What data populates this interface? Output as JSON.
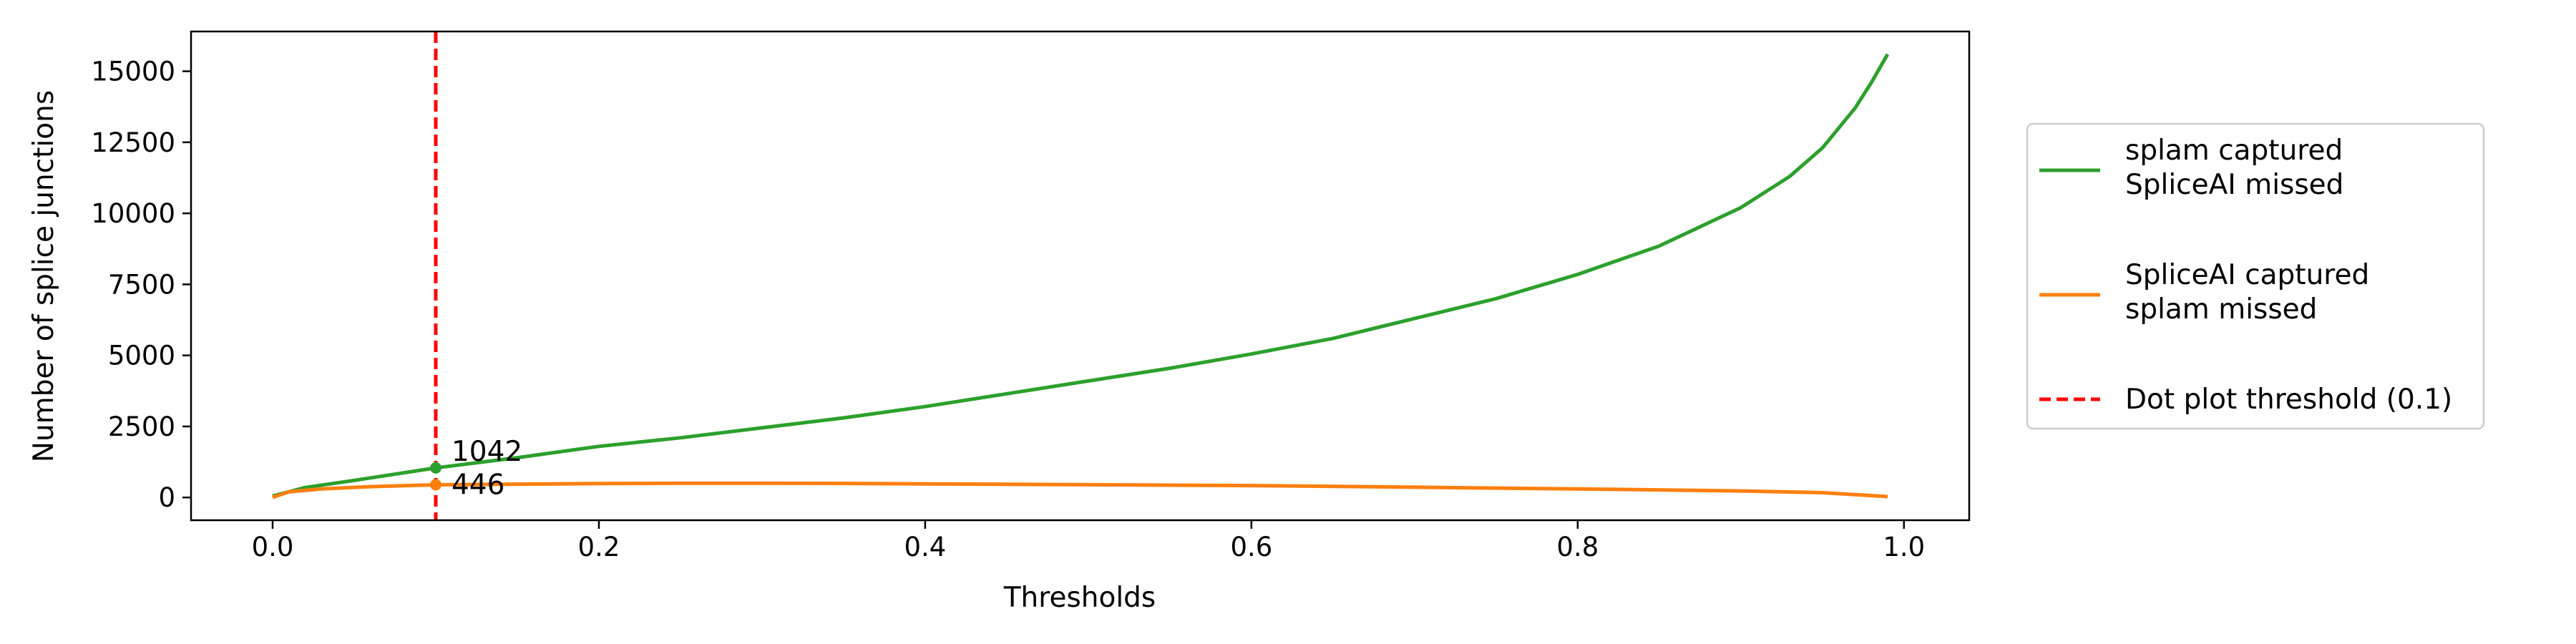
{
  "chart_data": {
    "type": "line",
    "xlabel": "Thresholds",
    "ylabel": "Number of splice junctions",
    "xlim": [
      -0.05,
      1.04
    ],
    "ylim": [
      -800,
      16400
    ],
    "xticks": [
      0.0,
      0.2,
      0.4,
      0.6,
      0.8,
      1.0
    ],
    "xtick_labels": [
      "0.0",
      "0.2",
      "0.4",
      "0.6",
      "0.8",
      "1.0"
    ],
    "yticks": [
      0,
      2500,
      5000,
      7500,
      10000,
      12500,
      15000
    ],
    "ytick_labels": [
      "0",
      "2500",
      "5000",
      "7500",
      "10000",
      "12500",
      "15000"
    ],
    "grid": false,
    "legend_position": "right-outside",
    "series": [
      {
        "name": "splam captured\nSpliceAI missed",
        "color": "#2ca02c",
        "x": [
          0.0,
          0.02,
          0.05,
          0.1,
          0.15,
          0.2,
          0.25,
          0.3,
          0.35,
          0.4,
          0.45,
          0.5,
          0.55,
          0.6,
          0.65,
          0.7,
          0.75,
          0.8,
          0.85,
          0.9,
          0.93,
          0.95,
          0.97,
          0.98,
          0.99
        ],
        "y": [
          50,
          350,
          600,
          1042,
          1400,
          1800,
          2100,
          2450,
          2800,
          3200,
          3650,
          4100,
          4550,
          5050,
          5600,
          6300,
          7000,
          7850,
          8850,
          10200,
          11300,
          12300,
          13700,
          14600,
          15600
        ]
      },
      {
        "name": "SpliceAI captured\nsplam missed",
        "color": "#ff7f0e",
        "x": [
          0.0,
          0.01,
          0.03,
          0.06,
          0.1,
          0.15,
          0.2,
          0.25,
          0.3,
          0.35,
          0.4,
          0.5,
          0.6,
          0.7,
          0.8,
          0.9,
          0.95,
          0.99
        ],
        "y": [
          0,
          200,
          300,
          380,
          446,
          470,
          490,
          500,
          500,
          495,
          480,
          450,
          420,
          360,
          300,
          230,
          170,
          30
        ]
      }
    ],
    "threshold_line": {
      "name": "Dot plot threshold (0.1)",
      "x": 0.1,
      "color": "#ff0000"
    },
    "annotations": [
      {
        "x": 0.1,
        "y": 1042,
        "text": "1042",
        "color": "#2ca02c"
      },
      {
        "x": 0.1,
        "y": 446,
        "text": "446",
        "color": "#ff7f0e"
      }
    ]
  }
}
